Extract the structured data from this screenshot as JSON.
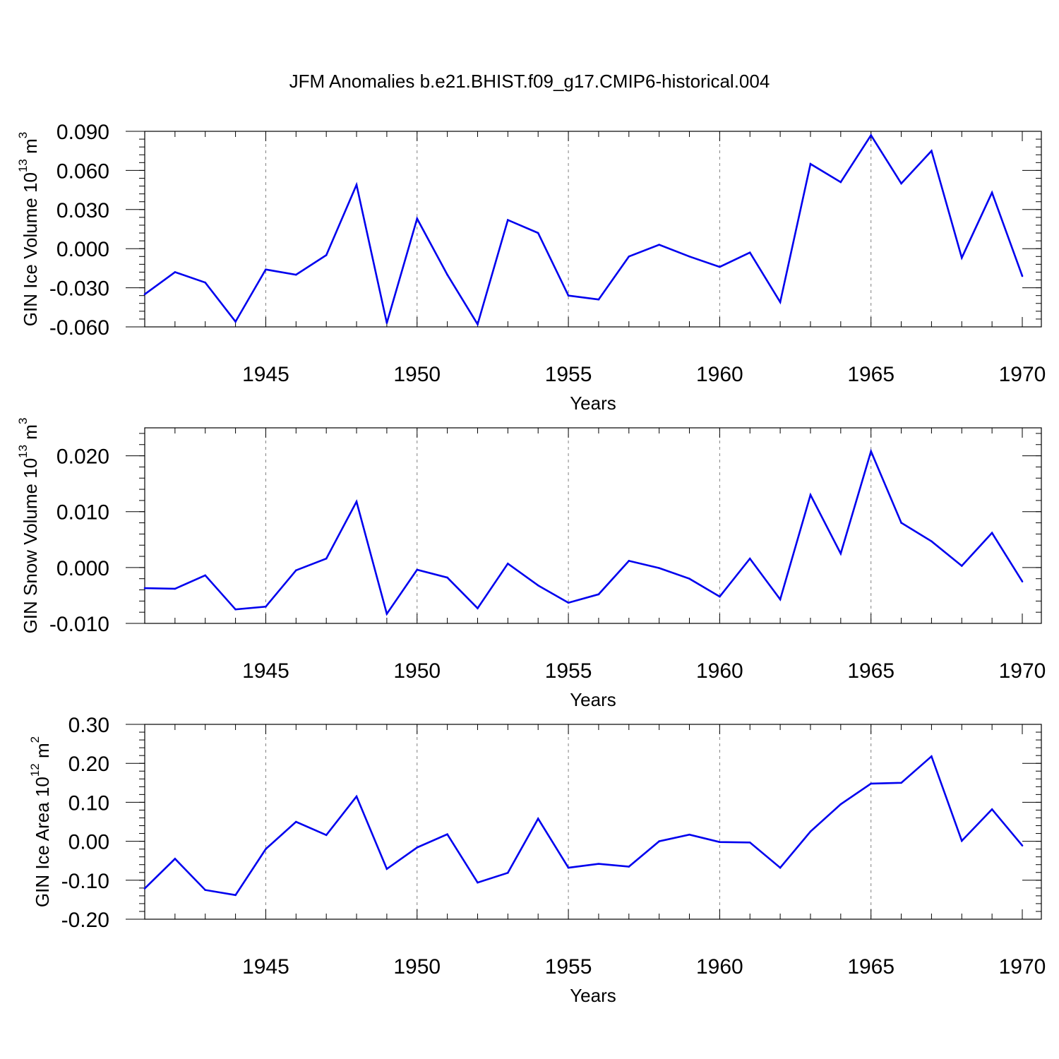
{
  "chart_data": {
    "type": "line",
    "title": "JFM Anomalies b.e21.BHIST.f09_g17.CMIP6-historical.004",
    "line_color": "#0000ee",
    "grid_color": "#808080",
    "x": [
      1941,
      1942,
      1943,
      1944,
      1945,
      1946,
      1947,
      1948,
      1949,
      1950,
      1951,
      1952,
      1953,
      1954,
      1955,
      1956,
      1957,
      1958,
      1959,
      1960,
      1961,
      1962,
      1963,
      1964,
      1965,
      1966,
      1967,
      1968,
      1969,
      1970
    ],
    "xlim": [
      1941,
      1970
    ],
    "x_ticks": [
      1945,
      1950,
      1955,
      1960,
      1965,
      1970
    ],
    "x_tick_labels": [
      "1945",
      "1950",
      "1955",
      "1960",
      "1965",
      "1970"
    ],
    "grid": "vertical dashed at major x ticks",
    "panels": [
      {
        "xlabel": "Years",
        "ylabel_main": "GIN Ice Volume 10",
        "ylabel_exp": "13",
        "ylabel_unit": " m",
        "ylabel_unit_exp": "3",
        "ylim": [
          -0.06,
          0.09
        ],
        "y_ticks": [
          -0.06,
          -0.03,
          0.0,
          0.03,
          0.06,
          0.09
        ],
        "y_tick_labels": [
          "-0.060",
          "-0.030",
          "0.000",
          "0.030",
          "0.060",
          "0.090"
        ],
        "y_minor_step": 0.006,
        "values": [
          -0.035,
          -0.018,
          -0.026,
          -0.056,
          -0.016,
          -0.02,
          -0.005,
          0.049,
          -0.057,
          0.023,
          -0.02,
          -0.058,
          0.022,
          0.012,
          -0.036,
          -0.039,
          -0.006,
          0.003,
          -0.006,
          -0.014,
          -0.003,
          -0.041,
          0.065,
          0.051,
          0.087,
          0.05,
          0.075,
          -0.007,
          0.043,
          -0.021
        ]
      },
      {
        "xlabel": "Years",
        "ylabel_main": "GIN Snow Volume 10",
        "ylabel_exp": "13",
        "ylabel_unit": " m",
        "ylabel_unit_exp": "3",
        "ylim": [
          -0.01,
          0.025
        ],
        "y_ticks": [
          -0.01,
          0.0,
          0.01,
          0.02
        ],
        "y_tick_labels": [
          "-0.010",
          "0.000",
          "0.010",
          "0.020"
        ],
        "y_minor_step": 0.002,
        "values": [
          -0.0037,
          -0.0038,
          -0.0014,
          -0.0075,
          -0.007,
          -0.0005,
          0.0016,
          0.0118,
          -0.0083,
          -0.0004,
          -0.0018,
          -0.0073,
          0.0007,
          -0.0032,
          -0.0063,
          -0.0048,
          0.0012,
          -0.0001,
          -0.002,
          -0.0052,
          0.0016,
          -0.0057,
          0.013,
          0.0025,
          0.0208,
          0.008,
          0.0047,
          0.0003,
          0.0062,
          -0.0025
        ]
      },
      {
        "xlabel": "Years",
        "ylabel_main": "GIN Ice Area 10",
        "ylabel_exp": "12",
        "ylabel_unit": " m",
        "ylabel_unit_exp": "2",
        "ylim": [
          -0.2,
          0.3
        ],
        "y_ticks": [
          -0.2,
          -0.1,
          0.0,
          0.1,
          0.2,
          0.3
        ],
        "y_tick_labels": [
          "-0.20",
          "-0.10",
          "0.00",
          "0.10",
          "0.20",
          "0.30"
        ],
        "y_minor_step": 0.02,
        "values": [
          -0.121,
          -0.045,
          -0.125,
          -0.138,
          -0.02,
          0.05,
          0.016,
          0.115,
          -0.071,
          -0.016,
          0.018,
          -0.106,
          -0.081,
          0.058,
          -0.068,
          -0.058,
          -0.065,
          0.0,
          0.017,
          -0.002,
          -0.003,
          -0.068,
          0.025,
          0.095,
          0.148,
          0.15,
          0.218,
          0.001,
          0.082,
          -0.011
        ]
      }
    ]
  }
}
